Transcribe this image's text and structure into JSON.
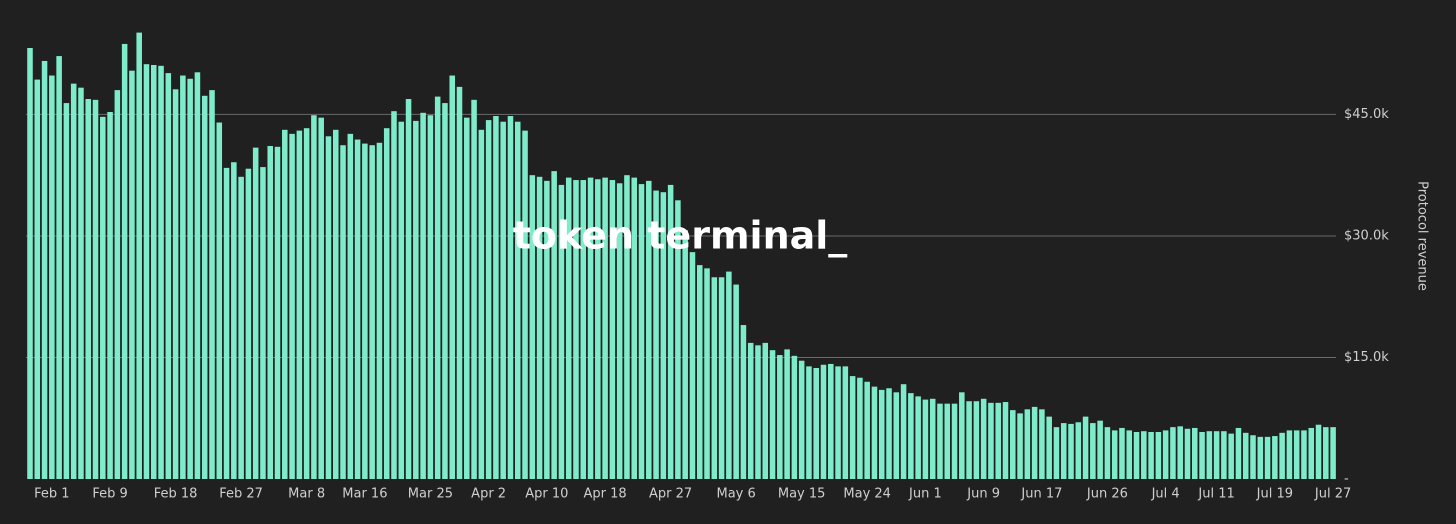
{
  "chart_data": {
    "type": "bar",
    "watermark": "token terminal_",
    "y_axis_label": "Protocol revenue",
    "y_axis_side": "right",
    "color": "#7eeccb",
    "grid": true,
    "ylim": [
      0,
      59000
    ],
    "yticks": [
      {
        "value": 0,
        "label": "-"
      },
      {
        "value": 15000,
        "label": "$15.0k"
      },
      {
        "value": 30000,
        "label": "$30.0k"
      },
      {
        "value": 45000,
        "label": "$45.0k"
      }
    ],
    "categories": [
      null,
      null,
      null,
      "Feb 1",
      null,
      null,
      null,
      null,
      null,
      null,
      null,
      "Feb 9",
      null,
      null,
      null,
      null,
      null,
      null,
      null,
      null,
      "Feb 18",
      null,
      null,
      null,
      null,
      null,
      null,
      null,
      null,
      "Feb 27",
      null,
      null,
      null,
      null,
      null,
      null,
      null,
      null,
      "Mar 8",
      null,
      null,
      null,
      null,
      null,
      null,
      null,
      "Mar 16",
      null,
      null,
      null,
      null,
      null,
      null,
      null,
      null,
      "Mar 25",
      null,
      null,
      null,
      null,
      null,
      null,
      null,
      "Apr 2",
      null,
      null,
      null,
      null,
      null,
      null,
      null,
      "Apr 10",
      null,
      null,
      null,
      null,
      null,
      null,
      null,
      "Apr 18",
      null,
      null,
      null,
      null,
      null,
      null,
      null,
      null,
      "Apr 27",
      null,
      null,
      null,
      null,
      null,
      null,
      null,
      null,
      "May 6",
      null,
      null,
      null,
      null,
      null,
      null,
      null,
      null,
      "May 15",
      null,
      null,
      null,
      null,
      null,
      null,
      null,
      null,
      "May 24",
      null,
      null,
      null,
      null,
      null,
      null,
      null,
      "Jun 1",
      null,
      null,
      null,
      null,
      null,
      null,
      null,
      "Jun 9",
      null,
      null,
      null,
      null,
      null,
      null,
      null,
      "Jun 17",
      null,
      null,
      null,
      null,
      null,
      null,
      null,
      null,
      "Jun 26",
      null,
      null,
      null,
      null,
      null,
      null,
      null,
      "Jul 4",
      null,
      null,
      null,
      null,
      null,
      null,
      "Jul 11",
      null,
      null,
      null,
      null,
      null,
      null,
      null,
      "Jul 19",
      null,
      null,
      null,
      null,
      null,
      null,
      null,
      "Jul 27"
    ],
    "values": [
      53200,
      49300,
      51600,
      49800,
      52200,
      46400,
      48800,
      48300,
      46900,
      46800,
      44700,
      45300,
      48000,
      53700,
      50400,
      55100,
      51200,
      51100,
      51000,
      50100,
      48100,
      49800,
      49400,
      50200,
      47300,
      48000,
      44000,
      38400,
      39100,
      37300,
      38300,
      40900,
      38500,
      41100,
      41000,
      43100,
      42600,
      43000,
      43300,
      44900,
      44600,
      42300,
      43100,
      41200,
      42600,
      41900,
      41400,
      41200,
      41500,
      43300,
      45400,
      44100,
      46900,
      44200,
      45200,
      44900,
      47200,
      46400,
      49800,
      48400,
      44600,
      46800,
      43100,
      44300,
      44800,
      44100,
      44800,
      44100,
      43000,
      37500,
      37300,
      36800,
      38000,
      36300,
      37200,
      36900,
      36900,
      37200,
      37000,
      37200,
      36900,
      36500,
      37500,
      37200,
      36400,
      36800,
      35600,
      35400,
      36300,
      34400,
      30700,
      28000,
      26400,
      26000,
      24900,
      24900,
      25600,
      24000,
      19000,
      16800,
      16500,
      16800,
      15900,
      15300,
      16000,
      15200,
      14600,
      13900,
      13700,
      14100,
      14200,
      13900,
      13900,
      12700,
      12500,
      12000,
      11400,
      11000,
      11200,
      10700,
      11700,
      10600,
      10200,
      9800,
      9900,
      9300,
      9300,
      9300,
      10700,
      9600,
      9600,
      9900,
      9400,
      9400,
      9500,
      8500,
      8100,
      8600,
      8900,
      8600,
      7700,
      6400,
      6900,
      6800,
      7000,
      7700,
      6900,
      7200,
      6400,
      6000,
      6300,
      6000,
      5800,
      5900,
      5800,
      5800,
      6000,
      6400,
      6500,
      6200,
      6300,
      5800,
      5900,
      5900,
      5900,
      5600,
      6300,
      5700,
      5400,
      5200,
      5200,
      5300,
      5700,
      6000,
      6000,
      6000,
      6300,
      6700,
      6400,
      6400
    ]
  }
}
